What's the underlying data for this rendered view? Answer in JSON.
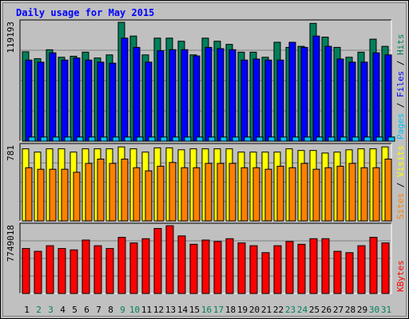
{
  "title": "Daily usage for May 2015",
  "colors": {
    "background": "#C0C0C0",
    "title": "#0000FF",
    "hits": "#00805C",
    "files": "#0000FF",
    "pages": "#00C0FF",
    "visits": "#FFFF00",
    "sites": "#FF8000",
    "kbytes": "#FF0000",
    "weekend_label": "#00805C",
    "weekday_label": "#000000"
  },
  "chart_data": [
    {
      "type": "bar",
      "panel": "hits-files-pages",
      "scale_label": "119193",
      "legend": [
        {
          "text": "Pages",
          "color": "#00C0FF"
        },
        {
          "text": " / ",
          "color": "#000000"
        },
        {
          "text": "Files",
          "color": "#0000FF"
        },
        {
          "text": " / ",
          "color": "#000000"
        },
        {
          "text": "Hits",
          "color": "#00805C"
        }
      ],
      "categories": [
        "1",
        "2",
        "3",
        "4",
        "5",
        "6",
        "7",
        "8",
        "9",
        "10",
        "11",
        "12",
        "13",
        "14",
        "15",
        "16",
        "17",
        "18",
        "19",
        "20",
        "21",
        "22",
        "23",
        "24",
        "25",
        "26",
        "27",
        "28",
        "29",
        "30",
        "31"
      ],
      "ylim": [
        0,
        119193
      ],
      "series": [
        {
          "name": "Hits",
          "values": [
            89650,
            82750,
            91700,
            84130,
            85170,
            89300,
            83450,
            86570,
            119200,
            105400,
            86560,
            103350,
            103350,
            100250,
            86560,
            103350,
            100250,
            97140,
            89300,
            89300,
            84130,
            99210,
            94040,
            95080,
            118160,
            104380,
            94040,
            84130,
            89300,
            102310,
            95080
          ]
        },
        {
          "name": "Files",
          "values": [
            81360,
            79280,
            88630,
            81360,
            83430,
            81360,
            79280,
            78250,
            103350,
            94040,
            79280,
            90690,
            91740,
            91740,
            85500,
            94040,
            92770,
            91740,
            81360,
            82400,
            81360,
            81360,
            99210,
            94040,
            105400,
            95080,
            82400,
            79280,
            79280,
            88630,
            86560
          ]
        },
        {
          "name": "Pages",
          "values": [
            4150,
            4150,
            4150,
            4150,
            4150,
            4150,
            4150,
            4150,
            4150,
            4150,
            4150,
            4150,
            4150,
            4150,
            4150,
            4150,
            4150,
            4150,
            4150,
            4150,
            4150,
            4150,
            4150,
            4150,
            4150,
            4150,
            4150,
            4150,
            4150,
            4150,
            4150
          ]
        }
      ]
    },
    {
      "type": "bar",
      "panel": "visits-sites",
      "scale_label": "781",
      "legend": [
        {
          "text": "Sites",
          "color": "#FF8000"
        },
        {
          "text": " / ",
          "color": "#000000"
        },
        {
          "text": "Visits",
          "color": "#FFFF00"
        }
      ],
      "categories": [
        "1",
        "2",
        "3",
        "4",
        "5",
        "6",
        "7",
        "8",
        "9",
        "10",
        "11",
        "12",
        "13",
        "14",
        "15",
        "16",
        "17",
        "18",
        "19",
        "20",
        "21",
        "22",
        "23",
        "24",
        "25",
        "26",
        "27",
        "28",
        "29",
        "30",
        "31"
      ],
      "ylim": [
        0,
        781
      ],
      "series": [
        {
          "name": "Visits",
          "values": [
            751,
            717,
            751,
            751,
            717,
            751,
            751,
            751,
            771,
            751,
            717,
            761,
            761,
            741,
            751,
            751,
            751,
            751,
            717,
            717,
            717,
            717,
            751,
            734,
            734,
            707,
            717,
            741,
            751,
            751,
            771
          ]
        },
        {
          "name": "Sites",
          "values": [
            554,
            538,
            538,
            538,
            507,
            599,
            644,
            599,
            644,
            554,
            522,
            570,
            609,
            554,
            554,
            599,
            599,
            599,
            554,
            554,
            538,
            570,
            554,
            599,
            538,
            554,
            570,
            599,
            554,
            554,
            644
          ]
        }
      ]
    },
    {
      "type": "bar",
      "panel": "kbytes",
      "scale_label": "7749018",
      "legend": [
        {
          "text": "KBytes",
          "color": "#FF0000"
        }
      ],
      "categories": [
        "1",
        "2",
        "3",
        "4",
        "5",
        "6",
        "7",
        "8",
        "9",
        "10",
        "11",
        "12",
        "13",
        "14",
        "15",
        "16",
        "17",
        "18",
        "19",
        "20",
        "21",
        "22",
        "23",
        "24",
        "25",
        "26",
        "27",
        "28",
        "29",
        "30",
        "31"
      ],
      "ylim": [
        0,
        7749018
      ],
      "series": [
        {
          "name": "KBytes",
          "values": [
            5145000,
            4824000,
            5463000,
            5145000,
            4985000,
            6104000,
            5463000,
            5145000,
            6422000,
            5783000,
            6264000,
            7430000,
            7749000,
            6583000,
            5623000,
            6104000,
            5945000,
            6264000,
            5783000,
            5463000,
            4664000,
            5463000,
            5945000,
            5623000,
            6264000,
            6264000,
            4824000,
            4664000,
            5463000,
            6422000,
            5783000
          ]
        }
      ]
    }
  ],
  "x_labels": [
    {
      "text": "1",
      "weekend": false
    },
    {
      "text": "2",
      "weekend": true
    },
    {
      "text": "3",
      "weekend": true
    },
    {
      "text": "4",
      "weekend": false
    },
    {
      "text": "5",
      "weekend": false
    },
    {
      "text": "6",
      "weekend": false
    },
    {
      "text": "7",
      "weekend": false
    },
    {
      "text": "8",
      "weekend": false
    },
    {
      "text": "9",
      "weekend": true
    },
    {
      "text": "10",
      "weekend": true
    },
    {
      "text": "11",
      "weekend": false
    },
    {
      "text": "12",
      "weekend": false
    },
    {
      "text": "13",
      "weekend": false
    },
    {
      "text": "14",
      "weekend": false
    },
    {
      "text": "15",
      "weekend": false
    },
    {
      "text": "16",
      "weekend": true
    },
    {
      "text": "17",
      "weekend": true
    },
    {
      "text": "18",
      "weekend": false
    },
    {
      "text": "19",
      "weekend": false
    },
    {
      "text": "20",
      "weekend": false
    },
    {
      "text": "21",
      "weekend": false
    },
    {
      "text": "22",
      "weekend": false
    },
    {
      "text": "23",
      "weekend": true
    },
    {
      "text": "24",
      "weekend": true
    },
    {
      "text": "25",
      "weekend": false
    },
    {
      "text": "26",
      "weekend": false
    },
    {
      "text": "27",
      "weekend": false
    },
    {
      "text": "28",
      "weekend": false
    },
    {
      "text": "29",
      "weekend": false
    },
    {
      "text": "30",
      "weekend": true
    },
    {
      "text": "31",
      "weekend": true
    }
  ]
}
